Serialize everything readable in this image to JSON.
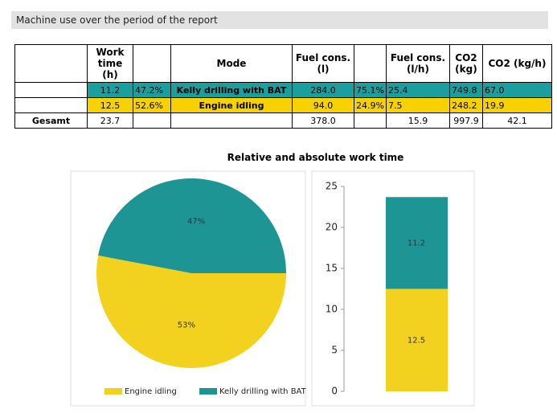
{
  "header": {
    "title": "Machine use over the period of the report"
  },
  "table": {
    "header": [
      null,
      "Work time (h)",
      null,
      "Mode",
      "Fuel cons. (l)",
      null,
      "Fuel cons. (l/h)",
      "CO2 (kg)",
      "CO2 (kg/h)"
    ],
    "rows": [
      [
        null,
        "11.2",
        "47.2%",
        "Kelly drilling with BAT",
        "284.0",
        "75.1%",
        "25.4",
        "749.8",
        "67.0"
      ],
      [
        null,
        "12.5",
        "52.6%",
        "Engine idling",
        "94.0",
        "24.9%",
        "7.5",
        "248.2",
        "19.9"
      ],
      [
        "Gesamt",
        "23.7",
        null,
        null,
        "378.0",
        null,
        "15.9",
        "997.9",
        "42.1"
      ]
    ],
    "row_colors": [
      "#1b9e9e",
      "#f7d200",
      null
    ]
  },
  "chart_title": "Relative and absolute work time",
  "chart_data": [
    {
      "type": "pie",
      "categories": [
        "Engine idling",
        "Kelly drilling with BAT"
      ],
      "values": [
        53,
        47
      ],
      "value_labels": [
        "53%",
        "47%"
      ],
      "colors": [
        "#f2d21f",
        "#1e9595"
      ]
    },
    {
      "type": "bar",
      "stacked": true,
      "series": [
        {
          "name": "Engine idling",
          "color": "#f2d21f",
          "values": [
            12.5
          ]
        },
        {
          "name": "Kelly drilling with BAT",
          "color": "#1e9595",
          "values": [
            11.2
          ]
        }
      ],
      "ylim": [
        0,
        25
      ],
      "yticks": [
        0,
        5,
        10,
        15,
        20,
        25
      ]
    }
  ]
}
